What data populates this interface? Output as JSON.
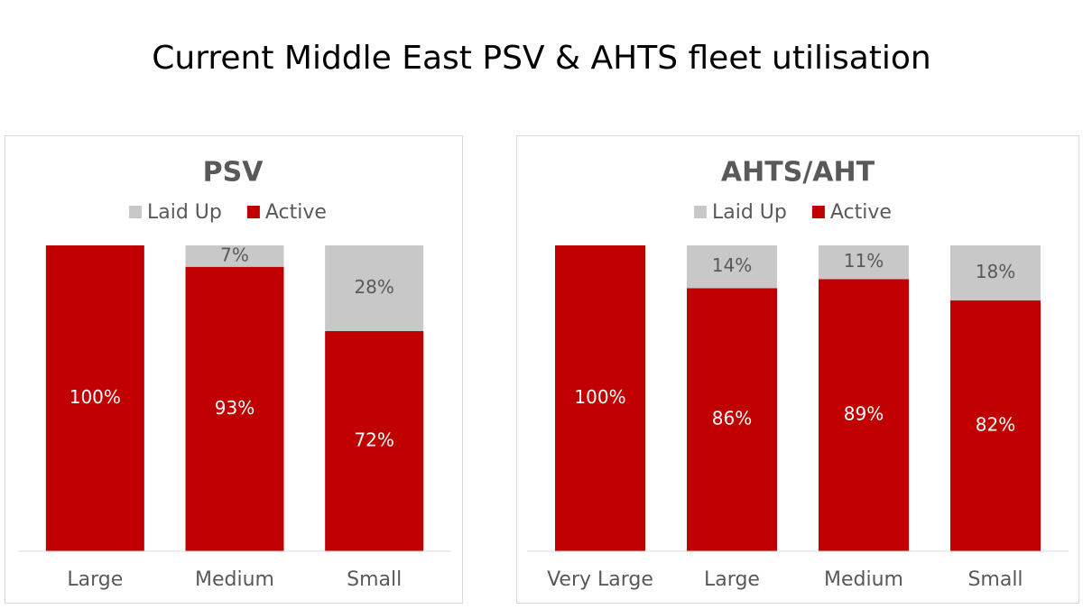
{
  "title": "Current Middle East PSV & AHTS fleet utilisation",
  "chart_data": [
    {
      "type": "bar",
      "stacked": true,
      "title": "PSV",
      "categories": [
        "Large",
        "Medium",
        "Small"
      ],
      "ylim": [
        0,
        100
      ],
      "series": [
        {
          "name": "Active",
          "color": "#c00000",
          "values": [
            100,
            93,
            72
          ],
          "value_labels": [
            "100%",
            "93%",
            "72%"
          ]
        },
        {
          "name": "Laid Up",
          "color": "#c8c8c8",
          "values": [
            0,
            7,
            28
          ],
          "value_labels": [
            null,
            "7%",
            "28%"
          ]
        }
      ]
    },
    {
      "type": "bar",
      "stacked": true,
      "title": "AHTS/AHT",
      "categories": [
        "Very Large",
        "Large",
        "Medium",
        "Small"
      ],
      "ylim": [
        0,
        100
      ],
      "series": [
        {
          "name": "Active",
          "color": "#c00000",
          "values": [
            100,
            86,
            89,
            82
          ],
          "value_labels": [
            "100%",
            "86%",
            "89%",
            "82%"
          ]
        },
        {
          "name": "Laid Up",
          "color": "#c8c8c8",
          "values": [
            0,
            14,
            11,
            18
          ],
          "value_labels": [
            null,
            "14%",
            "11%",
            "18%"
          ]
        }
      ]
    }
  ]
}
